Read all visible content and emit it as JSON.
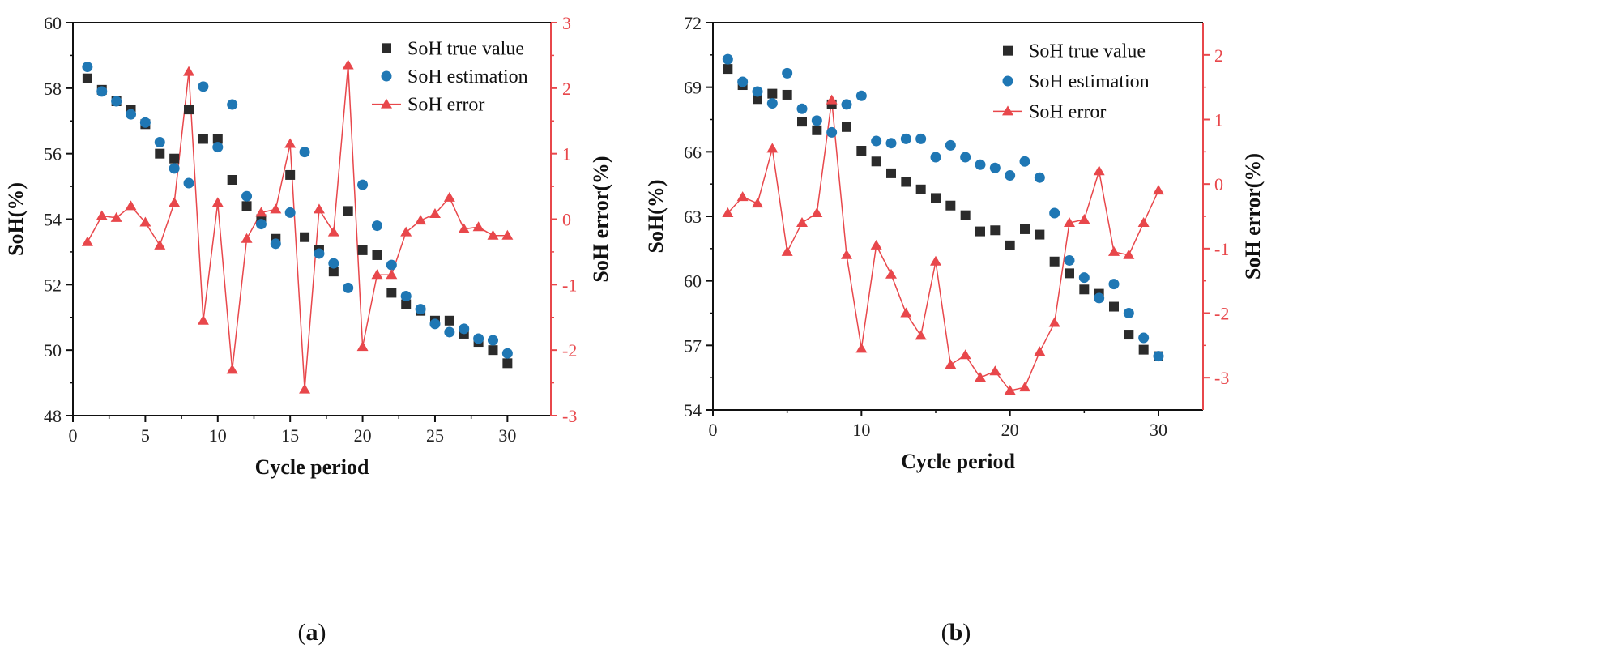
{
  "colors": {
    "true_value": "#2b2b2b",
    "estimation": "#1f77b4",
    "error": "#e8474b",
    "axis": "#111111"
  },
  "chart_data": [
    {
      "type": "scatter",
      "panel_label": "(a)",
      "panel_letter": "a",
      "xlabel": "Cycle period",
      "ylabel": "SoH(%)",
      "y2label": "SoH error(%)",
      "xlim": [
        0,
        33
      ],
      "xticks": [
        0,
        5,
        10,
        15,
        20,
        25,
        30
      ],
      "ylim": [
        48,
        60
      ],
      "yticks": [
        48,
        50,
        52,
        54,
        56,
        58,
        60
      ],
      "y2lim": [
        -3,
        3
      ],
      "y2ticks": [
        -3,
        -2,
        -1,
        0,
        1,
        2,
        3
      ],
      "legend": "top-right",
      "x": [
        1,
        2,
        3,
        4,
        5,
        6,
        7,
        8,
        9,
        10,
        11,
        12,
        13,
        14,
        15,
        16,
        17,
        18,
        19,
        20,
        21,
        22,
        23,
        24,
        25,
        26,
        27,
        28,
        29,
        30
      ],
      "series": [
        {
          "name": "SoH true value",
          "marker": "square",
          "axis": "left",
          "values": [
            58.3,
            57.95,
            57.6,
            57.35,
            56.9,
            56.0,
            55.85,
            57.35,
            56.45,
            56.45,
            55.2,
            54.4,
            54.0,
            53.4,
            55.35,
            53.45,
            53.05,
            52.4,
            54.25,
            53.05,
            52.9,
            51.75,
            51.4,
            51.2,
            50.9,
            50.9,
            50.5,
            50.25,
            50.0,
            49.6
          ]
        },
        {
          "name": "SoH estimation",
          "marker": "circle",
          "axis": "left",
          "values": [
            58.65,
            57.9,
            57.6,
            57.2,
            56.95,
            56.35,
            55.55,
            55.1,
            58.05,
            56.2,
            57.5,
            54.7,
            53.85,
            53.25,
            54.2,
            56.05,
            52.95,
            52.65,
            51.9,
            55.05,
            53.8,
            52.6,
            51.65,
            51.25,
            50.8,
            50.55,
            50.65,
            50.35,
            50.3,
            49.9
          ]
        },
        {
          "name": "SoH error",
          "marker": "triangle-line",
          "axis": "right",
          "values": [
            -0.35,
            0.05,
            0.02,
            0.2,
            -0.05,
            -0.4,
            0.25,
            2.25,
            -1.55,
            0.25,
            -2.3,
            -0.3,
            0.1,
            0.15,
            1.15,
            -2.6,
            0.15,
            -0.2,
            2.35,
            -1.95,
            -0.85,
            -0.85,
            -0.2,
            -0.02,
            0.08,
            0.33,
            -0.15,
            -0.12,
            -0.25,
            -0.25
          ]
        }
      ]
    },
    {
      "type": "scatter",
      "panel_label": "(b)",
      "panel_letter": "b",
      "xlabel": "Cycle period",
      "ylabel": "SoH(%)",
      "y2label": "SoH error(%)",
      "xlim": [
        0,
        33
      ],
      "xticks": [
        0,
        10,
        20,
        30
      ],
      "ylim": [
        54,
        72
      ],
      "yticks": [
        54,
        57,
        60,
        63,
        66,
        69,
        72
      ],
      "y2lim": [
        -3.5,
        2.5
      ],
      "y2ticks": [
        -3,
        -2,
        -1,
        0,
        1,
        2
      ],
      "legend": "top-right",
      "x": [
        1,
        2,
        3,
        4,
        5,
        6,
        7,
        8,
        9,
        10,
        11,
        12,
        13,
        14,
        15,
        16,
        17,
        18,
        19,
        20,
        21,
        22,
        23,
        24,
        25,
        26,
        27,
        28,
        29,
        30
      ],
      "series": [
        {
          "name": "SoH true value",
          "marker": "square",
          "axis": "left",
          "values": [
            69.85,
            69.1,
            68.45,
            68.7,
            68.65,
            67.4,
            67.0,
            68.2,
            67.15,
            66.05,
            65.55,
            65.0,
            64.6,
            64.25,
            63.85,
            63.5,
            63.05,
            62.3,
            62.35,
            61.65,
            62.4,
            62.15,
            60.9,
            60.35,
            59.6,
            59.4,
            58.8,
            57.5,
            56.8,
            56.5
          ]
        },
        {
          "name": "SoH estimation",
          "marker": "circle",
          "axis": "left",
          "values": [
            70.3,
            69.25,
            68.8,
            68.25,
            69.65,
            68.0,
            67.45,
            66.9,
            68.2,
            68.6,
            66.5,
            66.4,
            66.6,
            66.6,
            65.75,
            66.3,
            65.75,
            65.4,
            65.25,
            64.9,
            65.55,
            64.8,
            63.15,
            60.95,
            60.15,
            59.2,
            59.85,
            58.5,
            57.35,
            56.5
          ]
        },
        {
          "name": "SoH error",
          "marker": "triangle-line",
          "axis": "right",
          "values": [
            -0.45,
            -0.2,
            -0.3,
            0.55,
            -1.05,
            -0.6,
            -0.45,
            1.3,
            -1.1,
            -2.55,
            -0.95,
            -1.4,
            -2.0,
            -2.35,
            -1.2,
            -2.8,
            -2.65,
            -3.0,
            -2.9,
            -3.2,
            -3.15,
            -2.6,
            -2.15,
            -0.6,
            -0.55,
            0.2,
            -1.05,
            -1.1,
            -0.6,
            -0.1
          ]
        }
      ]
    }
  ]
}
